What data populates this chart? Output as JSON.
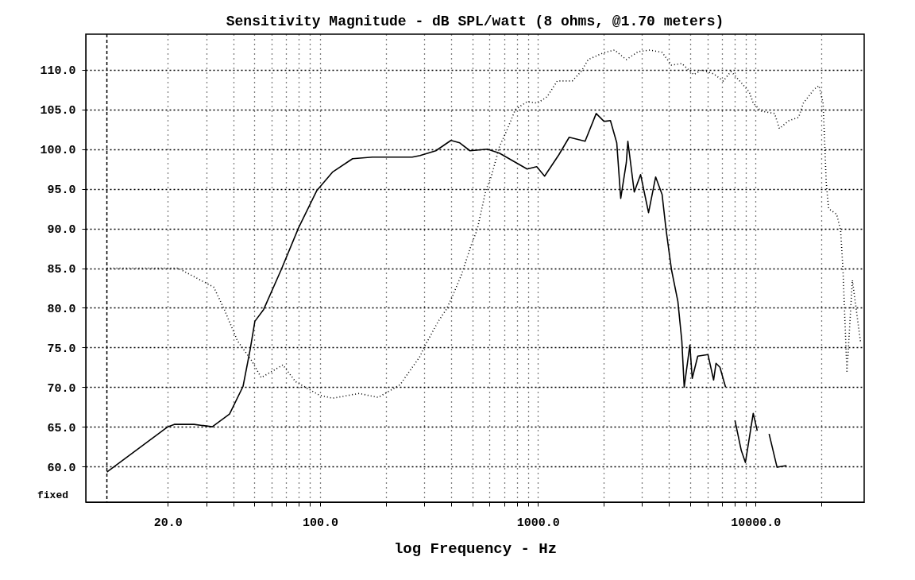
{
  "chart_data": {
    "type": "line",
    "title": "Sensitivity Magnitude - dB SPL/watt (8 ohms, @1.70 meters)",
    "xlabel": "log Frequency - Hz",
    "log": "x",
    "grid": true,
    "marker": "none",
    "xlim": [
      8.4,
      31500
    ],
    "ylim": [
      55.5,
      114.5
    ],
    "xticks": [
      {
        "value": 20,
        "label": "20.0"
      },
      {
        "value": 30,
        "label": null
      },
      {
        "value": 40,
        "label": null
      },
      {
        "value": 50,
        "label": null
      },
      {
        "value": 60,
        "label": null
      },
      {
        "value": 70,
        "label": null
      },
      {
        "value": 80,
        "label": null
      },
      {
        "value": 90,
        "label": null
      },
      {
        "value": 100,
        "label": "100.0"
      },
      {
        "value": 200,
        "label": null
      },
      {
        "value": 300,
        "label": null
      },
      {
        "value": 400,
        "label": null
      },
      {
        "value": 500,
        "label": null
      },
      {
        "value": 600,
        "label": null
      },
      {
        "value": 700,
        "label": null
      },
      {
        "value": 800,
        "label": null
      },
      {
        "value": 900,
        "label": null
      },
      {
        "value": 1000,
        "label": "1000.0"
      },
      {
        "value": 2000,
        "label": null
      },
      {
        "value": 3000,
        "label": null
      },
      {
        "value": 4000,
        "label": null
      },
      {
        "value": 5000,
        "label": null
      },
      {
        "value": 6000,
        "label": null
      },
      {
        "value": 7000,
        "label": null
      },
      {
        "value": 8000,
        "label": null
      },
      {
        "value": 9000,
        "label": null
      },
      {
        "value": 10000,
        "label": "10000.0"
      },
      {
        "value": 20000,
        "label": null
      }
    ],
    "yticks": [
      {
        "value": 60,
        "label": "60.0"
      },
      {
        "value": 65,
        "label": "65.0"
      },
      {
        "value": 70,
        "label": "70.0"
      },
      {
        "value": 75,
        "label": "75.0"
      },
      {
        "value": 80,
        "label": "80.0"
      },
      {
        "value": 85,
        "label": "85.0"
      },
      {
        "value": 90,
        "label": "90.0"
      },
      {
        "value": 95,
        "label": "95.0"
      },
      {
        "value": 100,
        "label": "100.0"
      },
      {
        "value": 105,
        "label": "105.0"
      },
      {
        "value": 110,
        "label": "110.0"
      }
    ],
    "ref_lines": [
      {
        "axis": "x",
        "value": 10.5,
        "line_style": "dashed"
      }
    ],
    "annotations": [
      "fixed"
    ],
    "series": [
      {
        "color": "#000000",
        "line_style": "solid",
        "x": [
          10.5,
          20,
          21.4,
          26.4,
          32,
          38.4,
          44.3,
          47.8,
          50.2,
          55.1,
          66.3,
          79.7,
          96.7,
          114,
          141,
          174,
          265,
          288,
          340,
          399,
          438,
          488,
          587,
          666,
          893,
          988,
          1074,
          1249,
          1393,
          1648,
          1853,
          2015,
          2154,
          2303,
          2402,
          2548,
          2590,
          2771,
          2963,
          3223,
          3475,
          3719,
          3877,
          4108,
          4395,
          4583,
          4699,
          4988,
          5115,
          5423,
          6043,
          6412,
          6577,
          6856,
          7276,
          7447,
          8035,
          8593,
          8974,
          9750,
          10170,
          10610,
          11530,
          12540,
          13860
        ],
        "values": [
          59.3,
          65.0,
          65.3,
          65.3,
          65.0,
          66.6,
          70.1,
          74.8,
          78.3,
          79.8,
          84.8,
          90.1,
          94.8,
          97.1,
          98.8,
          99.0,
          99.0,
          99.2,
          99.8,
          101.1,
          100.8,
          99.8,
          100.0,
          99.5,
          97.5,
          97.8,
          96.6,
          99.3,
          101.5,
          101.0,
          104.5,
          103.5,
          103.6,
          100.8,
          93.8,
          98.3,
          101.0,
          94.6,
          96.8,
          92.0,
          96.5,
          94.3,
          89.9,
          84.8,
          80.8,
          75.8,
          70.0,
          75.3,
          71.1,
          73.9,
          74.1,
          70.9,
          73.0,
          72.5,
          70.0,
          null,
          65.8,
          62.0,
          60.5,
          66.7,
          64.5,
          null,
          64.1,
          59.9,
          60.1
        ]
      },
      {
        "color": "#000000",
        "line_style": "dotted",
        "x": [
          10.5,
          22.3,
          29.1,
          32.5,
          36.2,
          41.8,
          48.6,
          53.7,
          67.5,
          77.1,
          99,
          114,
          151,
          185,
          233,
          288,
          300,
          349,
          380,
          403,
          445,
          497,
          526,
          577,
          612,
          666,
          724,
          788,
          893,
          995,
          1102,
          1228,
          1439,
          1581,
          1703,
          1982,
          2248,
          2548,
          2890,
          3275,
          3719,
          4108,
          4583,
          5200,
          5650,
          6412,
          7096,
          7709,
          8453,
          9354,
          9750,
          10610,
          12220,
          12850,
          14220,
          15740,
          16560,
          18620,
          19550,
          20400,
          20750,
          21090,
          21630,
          23540,
          24550,
          25180,
          26250,
          27810,
          30270
        ],
        "values": [
          85.0,
          85.0,
          83.3,
          82.6,
          79.9,
          75.8,
          73.3,
          71.2,
          72.8,
          70.7,
          69.0,
          68.6,
          69.2,
          68.7,
          70.3,
          73.9,
          75.0,
          78.3,
          79.8,
          81.3,
          84.1,
          88.1,
          89.8,
          94.8,
          96.6,
          100.3,
          102.5,
          105.0,
          106.0,
          105.8,
          106.6,
          108.6,
          108.6,
          109.8,
          111.3,
          112.1,
          112.5,
          111.3,
          112.3,
          112.5,
          112.2,
          110.6,
          110.8,
          109.4,
          110.0,
          109.5,
          108.6,
          109.8,
          108.6,
          107.2,
          105.8,
          104.8,
          104.5,
          102.6,
          103.6,
          104.0,
          105.8,
          107.6,
          108.0,
          105.8,
          100.8,
          95.8,
          92.5,
          91.8,
          89.8,
          84.8,
          71.8,
          83.5,
          75.8
        ]
      }
    ]
  }
}
